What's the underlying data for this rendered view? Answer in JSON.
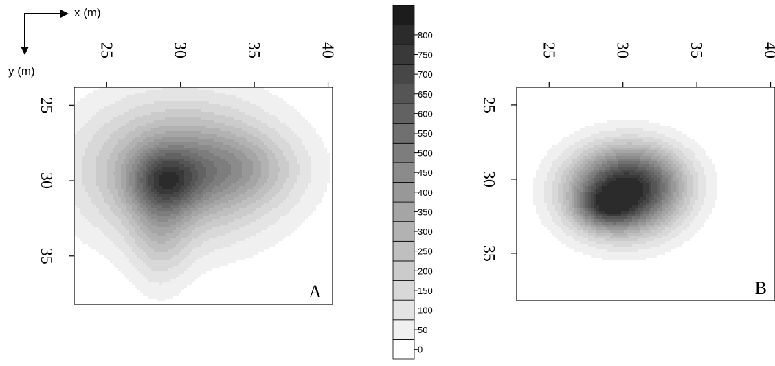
{
  "axes_key": {
    "x_label": "x (m)",
    "y_label": "y (m)"
  },
  "colorbar": {
    "levels": [
      0,
      50,
      100,
      150,
      200,
      250,
      300,
      350,
      400,
      450,
      500,
      550,
      600,
      650,
      700,
      750,
      800
    ],
    "tick_labels": [
      "0",
      "50",
      "100",
      "150",
      "200",
      "250",
      "300",
      "350",
      "400",
      "450",
      "500",
      "550",
      "600",
      "650",
      "700",
      "750",
      "800"
    ],
    "colors": [
      "#ffffff",
      "#f0f0f0",
      "#e4e4e4",
      "#d8d8d8",
      "#cbcbcb",
      "#bfbfbf",
      "#b2b2b2",
      "#a5a5a5",
      "#989898",
      "#8b8b8b",
      "#7d7d7d",
      "#707070",
      "#626262",
      "#555555",
      "#474747",
      "#393939",
      "#2b2b2b",
      "#1c1c1c"
    ]
  },
  "chart_data": [
    {
      "type": "heatmap",
      "panel_label": "A",
      "x_ticks": [
        "25",
        "30",
        "35",
        "40"
      ],
      "y_ticks": [
        "25",
        "30",
        "35"
      ],
      "xlim": [
        22.8,
        40.3
      ],
      "ylim": [
        23.8,
        38.2
      ],
      "y_inverted": true,
      "grid": false,
      "blobs": [
        {
          "x": 30.0,
          "y": 29.3,
          "sx": 4.6,
          "sy": 3.2,
          "amp": 430
        },
        {
          "x": 33.8,
          "y": 29.2,
          "sx": 2.8,
          "sy": 1.6,
          "amp": 170
        },
        {
          "x": 28.6,
          "y": 33.5,
          "sx": 1.4,
          "sy": 2.6,
          "amp": 170
        },
        {
          "x": 29.0,
          "y": 30.0,
          "sx": 1.6,
          "sy": 1.4,
          "amp": 320
        }
      ]
    },
    {
      "type": "heatmap",
      "panel_label": "B",
      "x_ticks": [
        "25",
        "30",
        "35",
        "40"
      ],
      "y_ticks": [
        "25",
        "30",
        "35"
      ],
      "xlim": [
        22.8,
        40.3
      ],
      "ylim": [
        23.8,
        38.2
      ],
      "y_inverted": true,
      "grid": false,
      "blobs": [
        {
          "x": 30.0,
          "y": 30.8,
          "sx": 2.6,
          "sy": 2.0,
          "amp": 800
        },
        {
          "x": 28.8,
          "y": 31.9,
          "sx": 1.3,
          "sy": 0.9,
          "amp": 250
        },
        {
          "x": 32.2,
          "y": 29.8,
          "sx": 2.0,
          "sy": 1.6,
          "amp": 120
        }
      ]
    }
  ]
}
